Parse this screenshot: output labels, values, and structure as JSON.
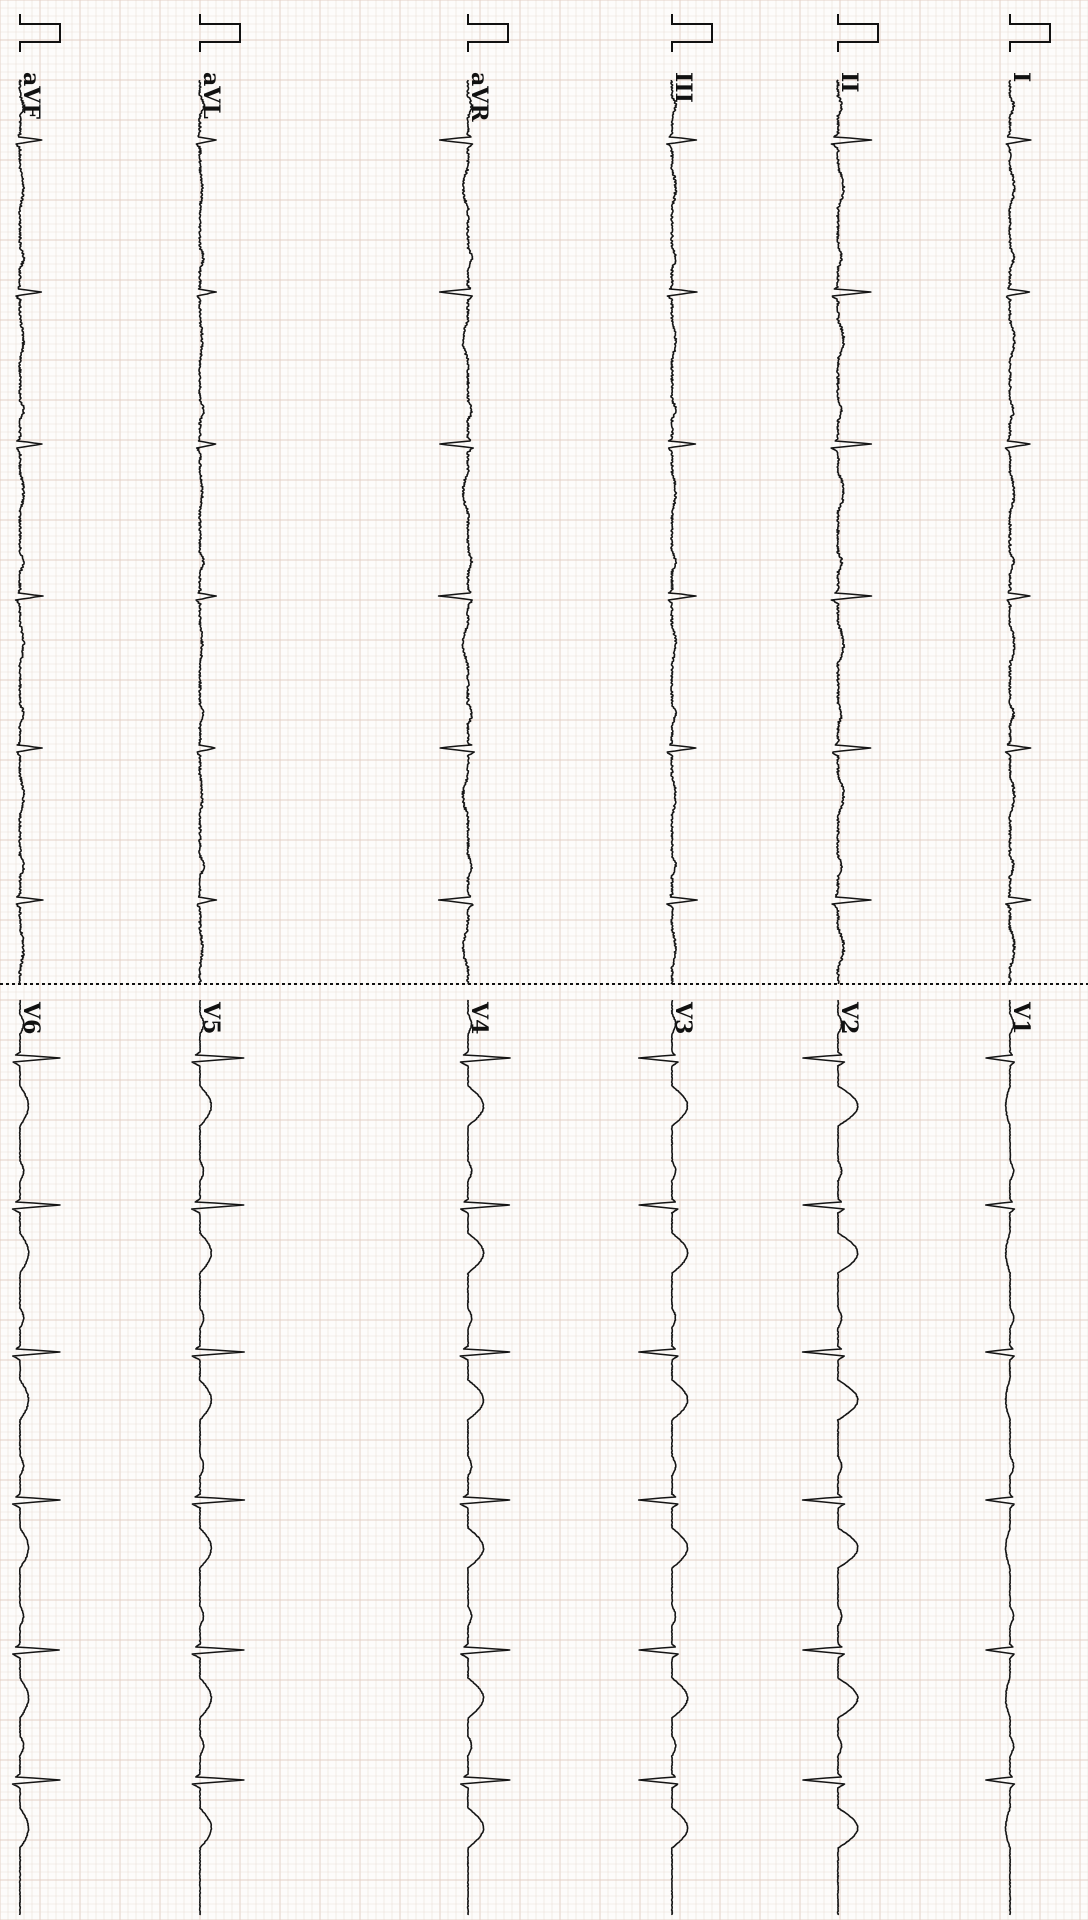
{
  "ecg": {
    "paper_color": "#fdfcfb",
    "grid_minor_color": "#e9dfd7",
    "grid_major_color": "#e3cfc6",
    "trace_color": "#151515",
    "orientation": "rotated-90-clockwise",
    "leads": [
      {
        "name": "I",
        "section": "limb",
        "amp": 0.45,
        "neg": false,
        "t_amp": 0.06
      },
      {
        "name": "II",
        "section": "limb",
        "amp": 0.75,
        "neg": false,
        "t_amp": 0.08
      },
      {
        "name": "III",
        "section": "limb",
        "amp": 0.55,
        "neg": false,
        "t_amp": 0.05
      },
      {
        "name": "aVR",
        "section": "limb",
        "amp": 0.65,
        "neg": true,
        "t_amp": -0.07
      },
      {
        "name": "aVL",
        "section": "limb",
        "amp": 0.35,
        "neg": false,
        "t_amp": 0.03
      },
      {
        "name": "aVF",
        "section": "limb",
        "amp": 0.5,
        "neg": false,
        "t_amp": 0.05
      },
      {
        "name": "V1",
        "section": "chest",
        "amp": 0.55,
        "neg": true,
        "t_amp": -0.06
      },
      {
        "name": "V2",
        "section": "chest",
        "amp": 0.8,
        "neg": true,
        "t_amp": 0.28
      },
      {
        "name": "V3",
        "section": "chest",
        "amp": 0.75,
        "neg": true,
        "t_amp": 0.22
      },
      {
        "name": "V4",
        "section": "chest",
        "amp": 0.95,
        "neg": false,
        "t_amp": 0.22
      },
      {
        "name": "V5",
        "section": "chest",
        "amp": 1.0,
        "neg": false,
        "t_amp": 0.16
      },
      {
        "name": "V6",
        "section": "chest",
        "amp": 0.9,
        "neg": false,
        "t_amp": 0.12
      }
    ]
  }
}
